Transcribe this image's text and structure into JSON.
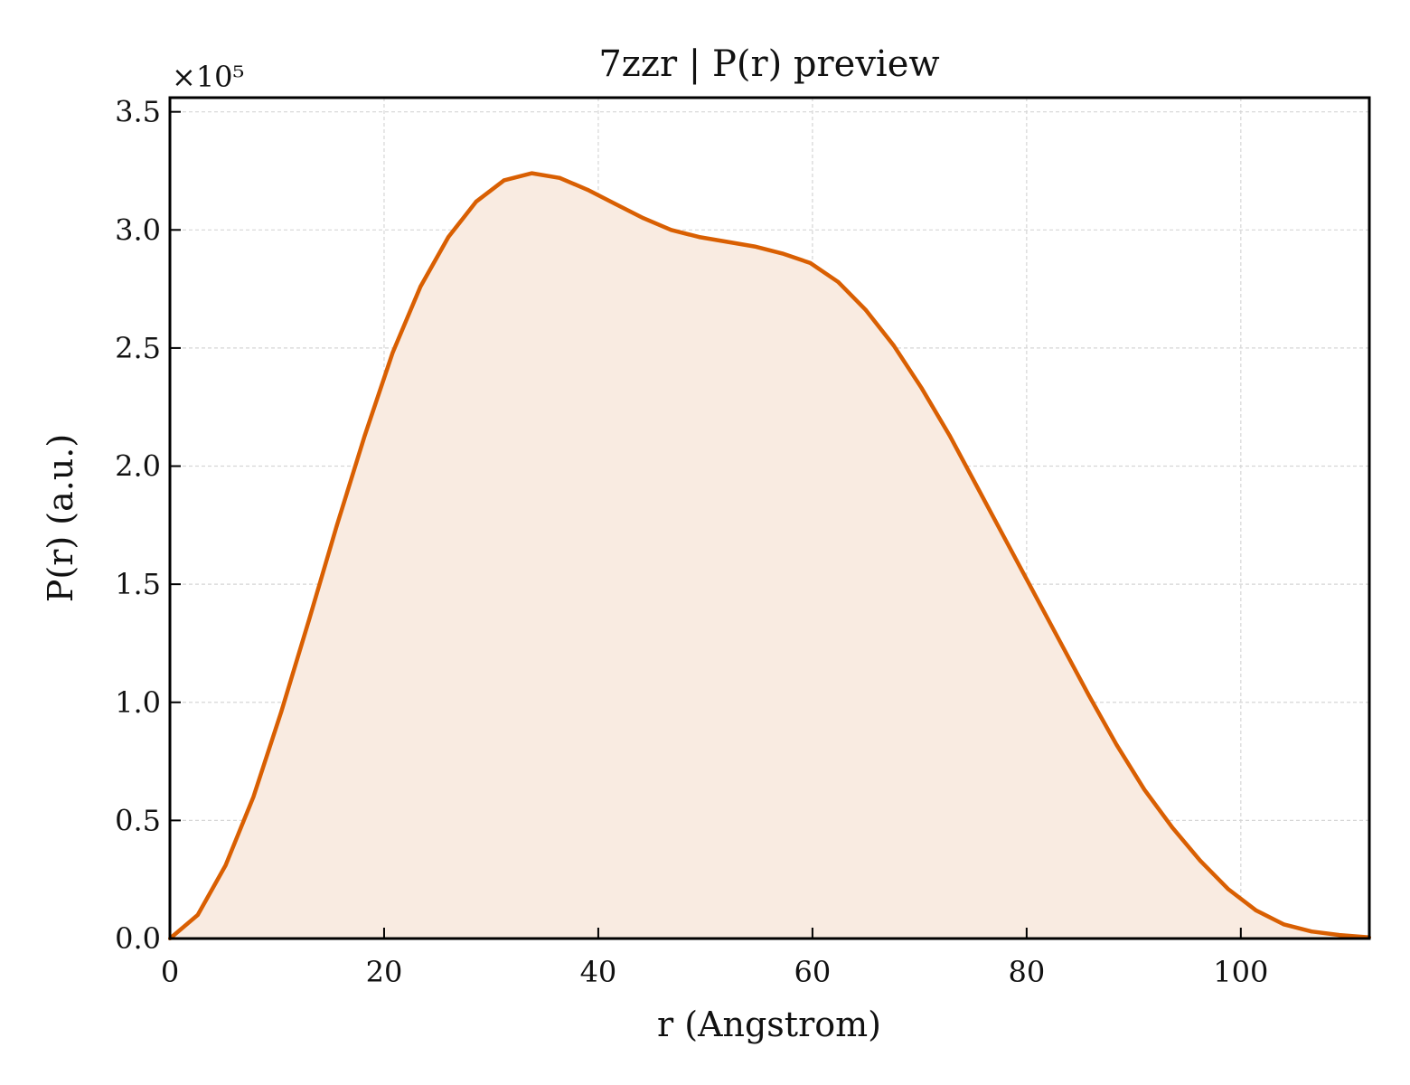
{
  "chart_data": {
    "type": "area",
    "title": "7zzr | P(r) preview",
    "xlabel": "r (Angstrom)",
    "ylabel": "P(r) (a.u.)",
    "y_multiplier_label": "×10⁵",
    "xlim": [
      0,
      112
    ],
    "ylim": [
      0,
      3.56
    ],
    "y_scale_factor": 100000,
    "xticks": [
      0,
      20,
      40,
      60,
      80,
      100
    ],
    "xtick_labels": [
      "0",
      "20",
      "40",
      "60",
      "80",
      "100"
    ],
    "yticks": [
      0,
      0.5,
      1.0,
      1.5,
      2.0,
      2.5,
      3.0,
      3.5
    ],
    "ytick_labels": [
      "0.0",
      "0.5",
      "1.0",
      "1.5",
      "2.0",
      "2.5",
      "3.0",
      "3.5"
    ],
    "grid": true,
    "series": [
      {
        "color": "#d95f02",
        "fill_color": "#f9ebe1",
        "x": [
          0,
          2.6,
          5.2,
          7.8,
          10.4,
          13.0,
          15.6,
          18.2,
          20.8,
          23.4,
          26.0,
          28.6,
          31.2,
          33.8,
          36.4,
          39.0,
          41.6,
          44.2,
          46.8,
          49.4,
          52.0,
          54.6,
          57.2,
          59.8,
          62.4,
          65.0,
          67.6,
          70.2,
          72.8,
          75.4,
          78.0,
          80.6,
          83.2,
          85.8,
          88.4,
          91.0,
          93.6,
          96.2,
          98.8,
          101.4,
          104.0,
          106.6,
          109.2,
          112.0
        ],
        "y": [
          0.0,
          0.1,
          0.31,
          0.6,
          0.96,
          1.35,
          1.75,
          2.13,
          2.48,
          2.76,
          2.97,
          3.12,
          3.21,
          3.24,
          3.22,
          3.17,
          3.11,
          3.05,
          3.0,
          2.97,
          2.95,
          2.93,
          2.9,
          2.86,
          2.78,
          2.66,
          2.51,
          2.33,
          2.13,
          1.91,
          1.69,
          1.47,
          1.25,
          1.03,
          0.82,
          0.63,
          0.47,
          0.33,
          0.21,
          0.12,
          0.06,
          0.03,
          0.015,
          0.005
        ]
      }
    ]
  }
}
